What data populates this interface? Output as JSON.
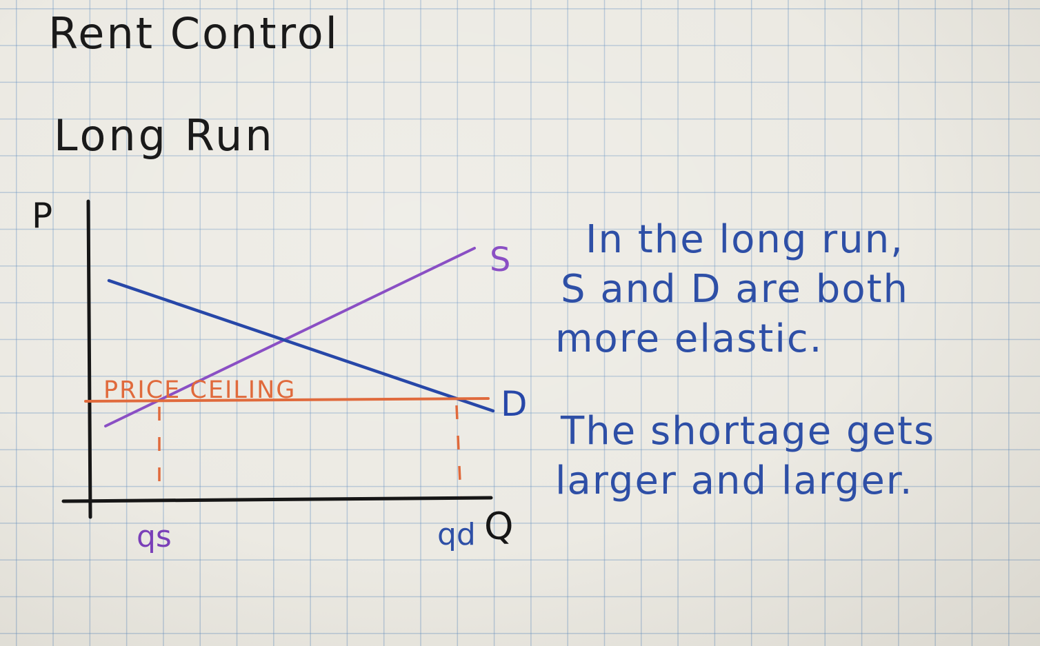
{
  "title": "Rent Control",
  "subtitle": "Long Run",
  "notes": {
    "paragraph1": [
      "In the long run,",
      "S and D are both",
      "more elastic."
    ],
    "paragraph2": [
      "The shortage gets",
      "larger and larger."
    ]
  },
  "diagram": {
    "y_axis_label": "P",
    "x_axis_label": "Q",
    "supply_label": "S",
    "demand_label": "D",
    "ceiling_label": "PRICE CEILING",
    "qs_label": "qs",
    "qd_label": "qd",
    "colors": {
      "axes": "#161616",
      "supply": "#8a4fc4",
      "demand": "#2747a8",
      "ceiling": "#e06a3c",
      "qs_label": "#7a3fb8",
      "qd_label": "#2e4fa6"
    }
  }
}
